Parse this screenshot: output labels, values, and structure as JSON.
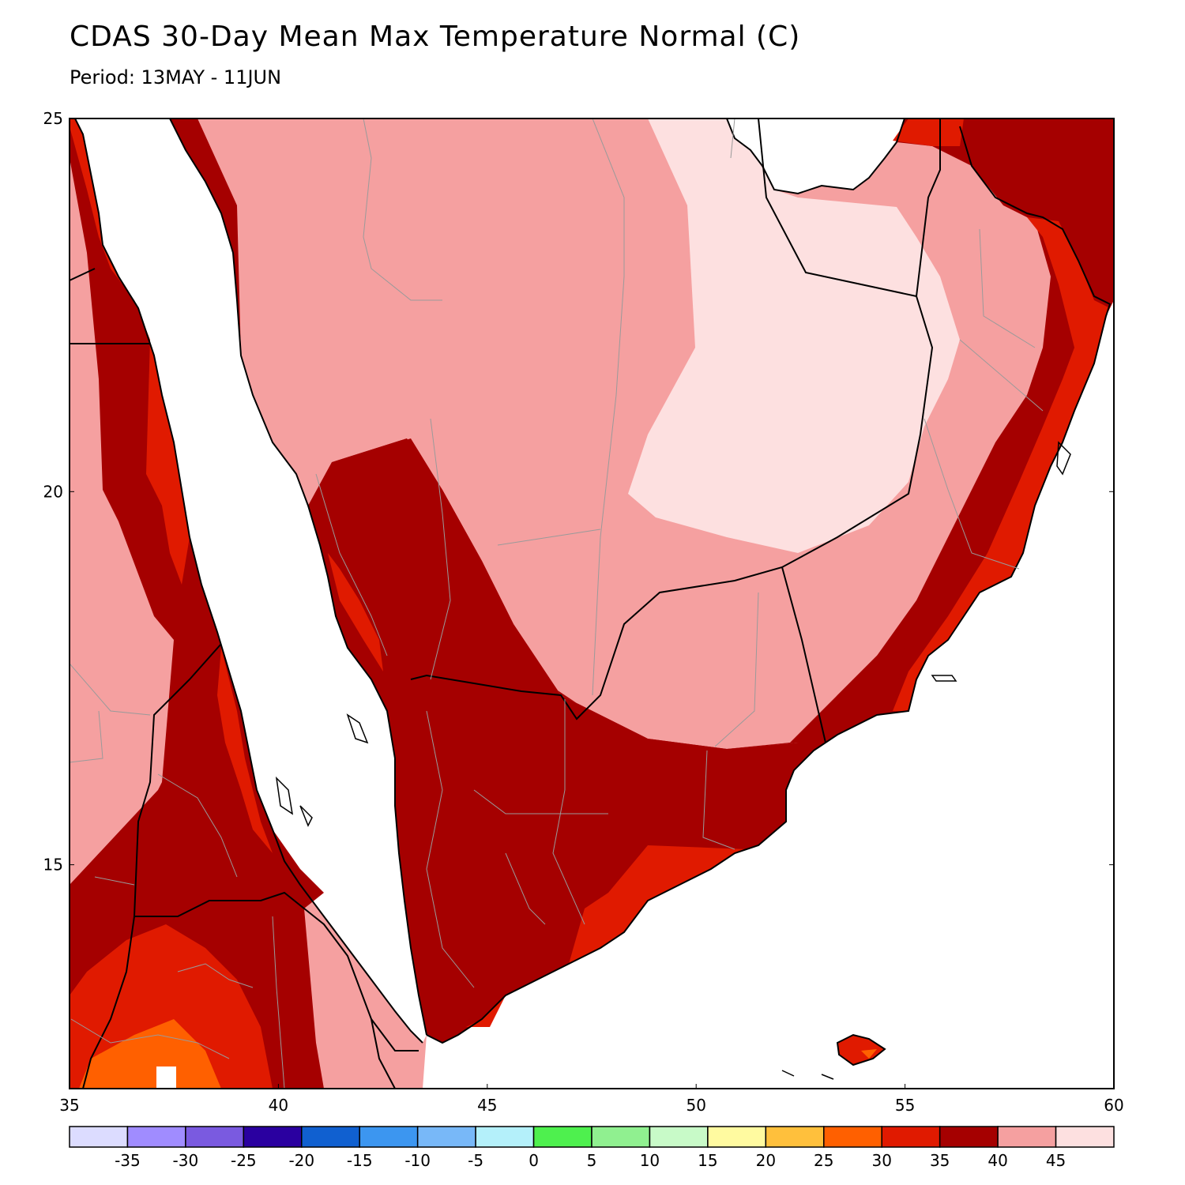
{
  "title": "CDAS 30-Day Mean Max Temperature Normal (C)",
  "subtitle": "Period: 13MAY - 11JUN",
  "map": {
    "region": "Arabian Peninsula / Red Sea / Horn of Africa",
    "lon_range": [
      35,
      60
    ],
    "lat_range": [
      12,
      25
    ],
    "lon_ticks": [
      "35",
      "40",
      "45",
      "50",
      "55",
      "60"
    ],
    "lat_ticks": [
      "25",
      "20",
      "15"
    ],
    "land_fill_colors": {
      "30-35": "#e01a00",
      "35-40": "#a50000",
      "40-45": "#f5a0a0",
      "45+": "#fde0e0",
      "25-30": "#ff6000"
    }
  },
  "colorbar": {
    "colors": [
      "#dcdcff",
      "#a08cff",
      "#7a5ae0",
      "#2a00a0",
      "#1060d0",
      "#3c96f0",
      "#78b8f8",
      "#b4f0fa",
      "#4ef04e",
      "#90f090",
      "#c8fac8",
      "#fffaa0",
      "#ffc03c",
      "#ff6000",
      "#e01a00",
      "#a50000",
      "#f5a0a0",
      "#fde0e0"
    ],
    "labels": [
      "-35",
      "-30",
      "-25",
      "-20",
      "-15",
      "-10",
      "-5",
      "0",
      "5",
      "10",
      "15",
      "20",
      "25",
      "30",
      "35",
      "40",
      "45"
    ]
  }
}
